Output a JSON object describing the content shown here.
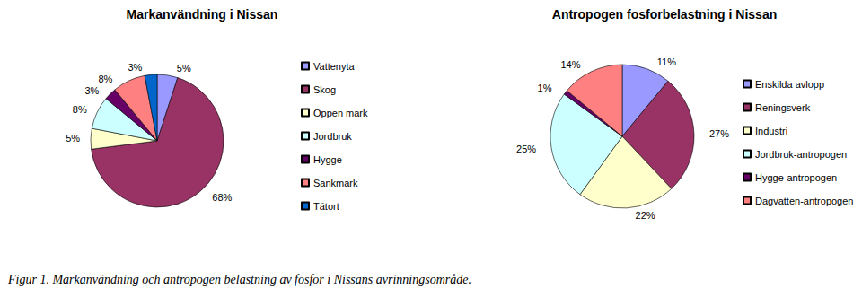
{
  "chart_data": [
    {
      "type": "pie",
      "title": "Markanvändning i Nissan",
      "categories": [
        "Vattenyta",
        "Skog",
        "Öppen mark",
        "Jordbruk",
        "Hygge",
        "Sankmark",
        "Tätort"
      ],
      "values": [
        5,
        68,
        5,
        8,
        3,
        8,
        3
      ],
      "value_labels": [
        "5%",
        "68%",
        "5%",
        "8%",
        "3%",
        "8%",
        "3%"
      ],
      "colors": [
        "#9999ff",
        "#993366",
        "#ffffcc",
        "#ccffff",
        "#660066",
        "#ff8080",
        "#0066cc"
      ],
      "data_labels": true,
      "legend": "right"
    },
    {
      "type": "pie",
      "title": "Antropogen fosforbelastning i Nissan",
      "categories": [
        "Enskilda avlopp",
        "Reningsverk",
        "Industri",
        "Jordbruk-antropogen",
        "Hygge-antropogen",
        "Dagvatten-antropogen"
      ],
      "values": [
        11,
        27,
        22,
        25,
        1,
        14
      ],
      "value_labels": [
        "11%",
        "27%",
        "22%",
        "25%",
        "1%",
        "14%"
      ],
      "colors": [
        "#9999ff",
        "#993366",
        "#ffffcc",
        "#ccffff",
        "#660066",
        "#ff8080"
      ],
      "data_labels": true,
      "legend": "right"
    }
  ],
  "caption": "Figur 1. Markanvändning och antropogen belastning av fosfor i Nissans avrinningsområde."
}
